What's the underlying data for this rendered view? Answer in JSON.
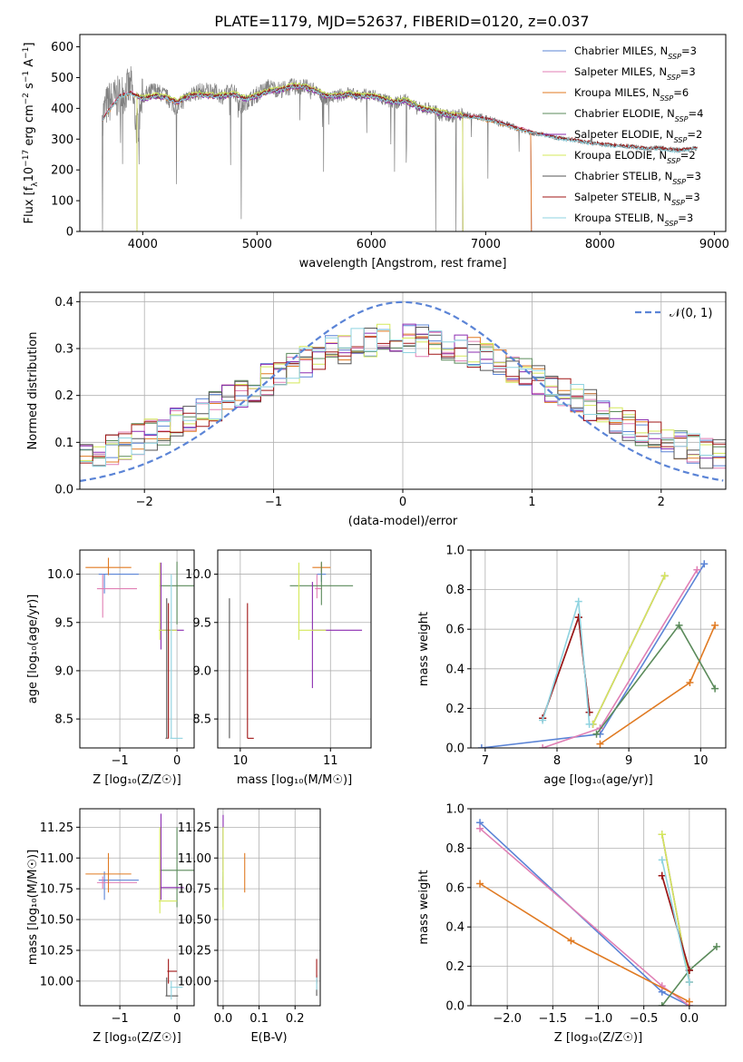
{
  "title": "PLATE=1179, MJD=52637, FIBERID=0120, z=0.037",
  "colors": {
    "Chabrier MILES": "#5b84d6",
    "Salpeter MILES": "#e07fb4",
    "Kroupa MILES": "#e07a22",
    "Chabrier ELODIE": "#5a8a5a",
    "Salpeter ELODIE": "#8b2bb0",
    "Kroupa ELODIE": "#d4e85a",
    "Chabrier STELIB": "#555555",
    "Salpeter STELIB": "#a01515",
    "Kroupa STELIB": "#8fd3e0",
    "data": "#808080"
  },
  "chart_data": [
    {
      "id": "spectrum",
      "type": "line",
      "xlabel": "wavelength [Angstrom, rest frame]",
      "ylabel_parts": [
        "Flux [f",
        "λ",
        "10",
        "−17",
        " erg cm",
        "−2",
        " s",
        "−1",
        " A",
        "−1",
        "]"
      ],
      "xlim": [
        3450,
        9100
      ],
      "ylim": [
        0,
        640
      ],
      "xticks": [
        4000,
        5000,
        6000,
        7000,
        8000,
        9000
      ],
      "yticks": [
        0,
        100,
        200,
        300,
        400,
        500,
        600
      ],
      "grid": false,
      "legend_position": "top-right",
      "legend": [
        {
          "name": "Chabrier MILES",
          "nssp": "3"
        },
        {
          "name": "Salpeter MILES",
          "nssp": "3"
        },
        {
          "name": "Kroupa MILES",
          "nssp": "6"
        },
        {
          "name": "Chabrier ELODIE",
          "nssp": "4"
        },
        {
          "name": "Salpeter ELODIE",
          "nssp": "2"
        },
        {
          "name": "Kroupa ELODIE",
          "nssp": "2"
        },
        {
          "name": "Chabrier STELIB",
          "nssp": "3"
        },
        {
          "name": "Salpeter STELIB",
          "nssp": "3"
        },
        {
          "name": "Kroupa STELIB",
          "nssp": "3"
        }
      ],
      "legend_label_prefix": "N",
      "legend_label_sub": "SSP",
      "data_curve": [
        [
          3650,
          380
        ],
        [
          3700,
          420
        ],
        [
          3800,
          440
        ],
        [
          3900,
          470
        ],
        [
          3950,
          330
        ],
        [
          4000,
          440
        ],
        [
          4100,
          460
        ],
        [
          4200,
          440
        ],
        [
          4300,
          400
        ],
        [
          4400,
          445
        ],
        [
          4500,
          455
        ],
        [
          4600,
          460
        ],
        [
          4700,
          440
        ],
        [
          4800,
          460
        ],
        [
          4860,
          400
        ],
        [
          4900,
          420
        ],
        [
          5000,
          445
        ],
        [
          5100,
          470
        ],
        [
          5200,
          460
        ],
        [
          5300,
          470
        ],
        [
          5400,
          470
        ],
        [
          5500,
          460
        ],
        [
          5600,
          430
        ],
        [
          5700,
          440
        ],
        [
          5800,
          450
        ],
        [
          5900,
          440
        ],
        [
          6000,
          445
        ],
        [
          6100,
          430
        ],
        [
          6200,
          415
        ],
        [
          6300,
          430
        ],
        [
          6400,
          400
        ],
        [
          6500,
          400
        ],
        [
          6563,
          390
        ],
        [
          6600,
          380
        ],
        [
          6700,
          375
        ],
        [
          6800,
          380
        ],
        [
          6900,
          375
        ],
        [
          7000,
          370
        ],
        [
          7100,
          355
        ],
        [
          7200,
          345
        ],
        [
          7300,
          330
        ],
        [
          7400,
          320
        ],
        [
          7500,
          315
        ],
        [
          7600,
          305
        ],
        [
          7700,
          300
        ],
        [
          7800,
          295
        ],
        [
          7900,
          290
        ],
        [
          8000,
          285
        ],
        [
          8100,
          280
        ],
        [
          8200,
          278
        ],
        [
          8300,
          275
        ],
        [
          8400,
          270
        ],
        [
          8500,
          272
        ],
        [
          8600,
          268
        ],
        [
          8700,
          265
        ],
        [
          8850,
          270
        ]
      ],
      "model_curve": [
        [
          3650,
          360
        ],
        [
          3700,
          390
        ],
        [
          3800,
          440
        ],
        [
          3900,
          450
        ],
        [
          4000,
          430
        ],
        [
          4100,
          440
        ],
        [
          4200,
          435
        ],
        [
          4300,
          420
        ],
        [
          4400,
          440
        ],
        [
          4500,
          445
        ],
        [
          4600,
          440
        ],
        [
          4700,
          440
        ],
        [
          4800,
          445
        ],
        [
          4900,
          430
        ],
        [
          5000,
          440
        ],
        [
          5100,
          455
        ],
        [
          5200,
          460
        ],
        [
          5300,
          470
        ],
        [
          5400,
          470
        ],
        [
          5500,
          460
        ],
        [
          5600,
          440
        ],
        [
          5700,
          440
        ],
        [
          5800,
          445
        ],
        [
          5900,
          440
        ],
        [
          6000,
          440
        ],
        [
          6100,
          430
        ],
        [
          6200,
          420
        ],
        [
          6300,
          425
        ],
        [
          6400,
          405
        ],
        [
          6500,
          395
        ],
        [
          6600,
          385
        ],
        [
          6700,
          378
        ],
        [
          6800,
          375
        ],
        [
          6900,
          372
        ],
        [
          7000,
          365
        ],
        [
          7100,
          355
        ],
        [
          7200,
          345
        ],
        [
          7300,
          333
        ],
        [
          7400,
          322
        ],
        [
          7500,
          315
        ],
        [
          7600,
          305
        ],
        [
          7700,
          300
        ],
        [
          7800,
          295
        ],
        [
          7900,
          288
        ],
        [
          8000,
          283
        ],
        [
          8100,
          280
        ],
        [
          8200,
          276
        ],
        [
          8300,
          273
        ],
        [
          8400,
          270
        ],
        [
          8500,
          270
        ],
        [
          8600,
          265
        ],
        [
          8700,
          262
        ],
        [
          8850,
          272
        ]
      ],
      "elodie_start": 3950,
      "elodie_end": 6800,
      "miles_end": 7400,
      "stelib_end": 8850
    },
    {
      "id": "residuals",
      "type": "bar",
      "xlabel": "(data-model)/error",
      "ylabel": "Normed distribution",
      "xlim": [
        -2.5,
        2.5
      ],
      "ylim": [
        0,
        0.42
      ],
      "xticks": [
        -2,
        -1,
        0,
        1,
        2
      ],
      "xtick_labels": [
        "−2",
        "−1",
        "0",
        "1",
        "2"
      ],
      "yticks": [
        0.0,
        0.1,
        0.2,
        0.3,
        0.4
      ],
      "ytick_labels": [
        "0.0",
        "0.1",
        "0.2",
        "0.3",
        "0.4"
      ],
      "grid": true,
      "legend_position": "top-right",
      "normal_label": "𝒩(0, 1)",
      "bin_width": 0.1
    },
    {
      "id": "age_vs_Z",
      "type": "scatter",
      "xlabel": "Z [log₁₀(Z/Z☉)]",
      "ylabel": "age  [log₁₀(age/yr)]",
      "xlim": [
        -1.7,
        0.3
      ],
      "ylim": [
        8.2,
        10.25
      ],
      "xticks": [
        -1,
        0
      ],
      "xtick_labels": [
        "−1",
        "0"
      ],
      "yticks": [
        8.5,
        9.0,
        9.5,
        10.0
      ],
      "ytick_labels": [
        "8.5",
        "9.0",
        "9.5",
        "10.0"
      ],
      "grid": true
    },
    {
      "id": "age_vs_mass",
      "type": "scatter",
      "xlabel": "mass [log₁₀(M/M☉)]",
      "xlim": [
        9.75,
        11.45
      ],
      "ylim": [
        8.2,
        10.25
      ],
      "xticks": [
        10,
        11
      ],
      "xtick_labels": [
        "10",
        "11"
      ],
      "yticks": [
        8.5,
        9.0,
        9.5,
        10.0
      ],
      "ytick_labels": [
        "8.5",
        "9.0",
        "9.5",
        "10.0"
      ],
      "grid": true
    },
    {
      "id": "massweight_vs_age",
      "type": "line",
      "xlabel": "age  [log₁₀(age/yr)]",
      "ylabel": "mass weight",
      "xlim": [
        6.8,
        10.35
      ],
      "ylim": [
        0,
        1.0
      ],
      "xticks": [
        7,
        8,
        9,
        10
      ],
      "xtick_labels": [
        "7",
        "8",
        "9",
        "10"
      ],
      "yticks": [
        0.0,
        0.2,
        0.4,
        0.6,
        0.8,
        1.0
      ],
      "ytick_labels": [
        "0.0",
        "0.2",
        "0.4",
        "0.6",
        "0.8",
        "1.0"
      ],
      "grid": true
    },
    {
      "id": "mass_vs_Z",
      "type": "scatter",
      "xlabel": "Z [log₁₀(Z/Z☉)]",
      "ylabel": "mass [log₁₀(M/M☉)]",
      "xlim": [
        -1.7,
        0.3
      ],
      "ylim": [
        9.8,
        11.4
      ],
      "xticks": [
        -1,
        0
      ],
      "xtick_labels": [
        "−1",
        "0"
      ],
      "yticks": [
        10.0,
        10.25,
        10.5,
        10.75,
        11.0,
        11.25
      ],
      "ytick_labels": [
        "10.00",
        "10.25",
        "10.50",
        "10.75",
        "11.00",
        "11.25"
      ],
      "grid": true
    },
    {
      "id": "mass_vs_ebv",
      "type": "scatter",
      "xlabel": "E(B-V)",
      "xlim": [
        -0.015,
        0.27
      ],
      "ylim": [
        9.8,
        11.4
      ],
      "xticks": [
        0.0,
        0.1,
        0.2
      ],
      "xtick_labels": [
        "0.0",
        "0.1",
        "0.2"
      ],
      "yticks": [
        10.0,
        10.25,
        10.5,
        10.75,
        11.0,
        11.25
      ],
      "ytick_labels": [
        "10.00",
        "10.25",
        "10.50",
        "10.75",
        "11.00",
        "11.25"
      ],
      "grid": true
    },
    {
      "id": "massweight_vs_Z",
      "type": "line",
      "xlabel": "Z [log₁₀(Z/Z☉)]",
      "ylabel": "mass weight",
      "xlim": [
        -2.4,
        0.4
      ],
      "ylim": [
        0,
        1.0
      ],
      "xticks": [
        -2.0,
        -1.5,
        -1.0,
        -0.5,
        0.0
      ],
      "xtick_labels": [
        "−2.0",
        "−1.5",
        "−1.0",
        "−0.5",
        "0.0"
      ],
      "yticks": [
        0.0,
        0.2,
        0.4,
        0.6,
        0.8,
        1.0
      ],
      "ytick_labels": [
        "0.0",
        "0.2",
        "0.4",
        "0.6",
        "0.8",
        "1.0"
      ],
      "grid": true
    }
  ],
  "components": [
    {
      "name": "Chabrier MILES",
      "age": [
        10.0,
        9.98
      ],
      "Z": [
        -1.27,
        -1.35,
        -0.7
      ],
      "mass": [
        10.82,
        10.66,
        10.88
      ],
      "ebv": 0.0,
      "age_err": [
        10.05,
        10.05
      ],
      "mass_err": [
        10.85,
        10.95
      ],
      "weights_age": [
        [
          6.95,
          0.0
        ],
        [
          8.6,
          0.07
        ],
        [
          10.05,
          0.93
        ]
      ],
      "weights_Z": [
        [
          -2.3,
          0.93
        ],
        [
          -0.3,
          0.07
        ],
        [
          0.0,
          0.0
        ]
      ]
    },
    {
      "name": "Salpeter MILES",
      "age": [
        9.85
      ],
      "Z": [
        -1.3
      ],
      "mass": [
        10.8
      ],
      "ebv": 0.0,
      "weights_age": [
        [
          7.8,
          0.0
        ],
        [
          8.6,
          0.1
        ],
        [
          9.95,
          0.9
        ]
      ],
      "weights_Z": [
        [
          -2.3,
          0.9
        ],
        [
          -0.3,
          0.1
        ],
        [
          0.0,
          0.0
        ]
      ]
    },
    {
      "name": "Kroupa MILES",
      "age": [
        10.07
      ],
      "Z": [
        -1.3
      ],
      "mass": [
        10.87
      ],
      "ebv": 0.06,
      "weights_age": [
        [
          8.6,
          0.02
        ],
        [
          9.85,
          0.33
        ],
        [
          10.2,
          0.62
        ]
      ],
      "weights_Z": [
        [
          -2.3,
          0.62
        ],
        [
          -1.3,
          0.33
        ],
        [
          0.0,
          0.02
        ]
      ]
    },
    {
      "name": "Chabrier ELODIE",
      "age": [
        9.88
      ],
      "Z": [
        0.0
      ],
      "mass": [
        10.9
      ],
      "ebv": 0.0,
      "weights_age": [
        [
          8.55,
          0.07
        ],
        [
          9.7,
          0.62
        ],
        [
          10.2,
          0.3
        ]
      ],
      "weights_Z": [
        [
          -0.3,
          0.0
        ],
        [
          0.0,
          0.18
        ],
        [
          0.3,
          0.3
        ]
      ]
    },
    {
      "name": "Salpeter ELODIE",
      "age": [
        9.42
      ],
      "Z": [
        -0.28
      ],
      "mass": [
        10.76
      ],
      "ebv": 0.0,
      "weights_age": [
        [
          8.5,
          0.12
        ],
        [
          9.5,
          0.87
        ]
      ],
      "weights_Z": [
        [
          -0.3,
          0.87
        ],
        [
          0.0,
          0.12
        ]
      ]
    },
    {
      "name": "Kroupa ELODIE",
      "age": [
        9.42
      ],
      "Z": [
        -0.3
      ],
      "mass": [
        10.65
      ],
      "ebv": 0.0,
      "weights_age": [
        [
          8.5,
          0.12
        ],
        [
          9.5,
          0.87
        ]
      ],
      "weights_Z": [
        [
          -0.3,
          0.87
        ],
        [
          0.0,
          0.12
        ]
      ]
    },
    {
      "name": "Chabrier STELIB",
      "age": [
        8.3
      ],
      "Z": [
        -0.15
      ],
      "mass": [
        9.88
      ],
      "ebv": 0.26,
      "weights_age": [
        [
          7.8,
          0.15
        ],
        [
          8.3,
          0.66
        ],
        [
          8.45,
          0.18
        ]
      ],
      "weights_Z": [
        [
          -0.3,
          0.66
        ],
        [
          0.0,
          0.18
        ]
      ]
    },
    {
      "name": "Salpeter STELIB",
      "age": [
        8.3
      ],
      "Z": [
        -0.12
      ],
      "mass": [
        10.08
      ],
      "ebv": 0.26,
      "weights_age": [
        [
          7.8,
          0.15
        ],
        [
          8.3,
          0.66
        ],
        [
          8.45,
          0.18
        ]
      ],
      "weights_Z": [
        [
          -0.3,
          0.66
        ],
        [
          0.0,
          0.18
        ]
      ]
    },
    {
      "name": "Kroupa STELIB",
      "age": [
        8.3
      ],
      "Z": [
        -0.1
      ],
      "mass": [
        9.95
      ],
      "ebv": 0.26,
      "weights_age": [
        [
          7.8,
          0.14
        ],
        [
          8.3,
          0.74
        ],
        [
          8.45,
          0.12
        ]
      ],
      "weights_Z": [
        [
          -0.3,
          0.74
        ],
        [
          0.0,
          0.12
        ]
      ]
    }
  ]
}
